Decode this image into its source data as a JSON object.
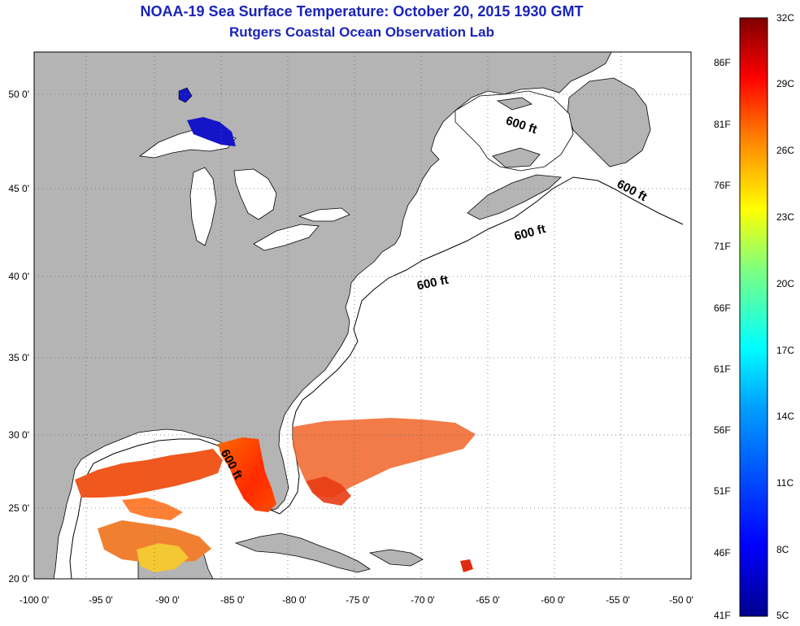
{
  "title": "NOAA-19 Sea Surface Temperature:  October 20, 2015 1930 GMT",
  "subtitle": "Rutgers Coastal Ocean Observation Lab",
  "lat_ticks": [
    "50 0'",
    "45 0'",
    "40 0'",
    "35 0'",
    "30 0'",
    "25 0'",
    "20 0'"
  ],
  "lon_ticks": [
    "-100 0'",
    "-95 0'",
    "-90 0'",
    "-85 0'",
    "-80 0'",
    "-75 0'",
    "-70 0'",
    "-65 0'",
    "-60 0'",
    "-55 0'",
    "-50 0'"
  ],
  "contour_labels": [
    "600 ft",
    "600 ft",
    "600 ft",
    "600 ft",
    "600 ft"
  ],
  "colorbar": {
    "celsius": [
      "32C",
      "29C",
      "26C",
      "23C",
      "20C",
      "17C",
      "14C",
      "11C",
      "8C",
      "5C"
    ],
    "fahrenheit": [
      "86F",
      "81F",
      "76F",
      "71F",
      "66F",
      "61F",
      "56F",
      "51F",
      "46F",
      "41F"
    ],
    "colors": [
      "#7f0000",
      "#ff0000",
      "#ff7f00",
      "#ffff00",
      "#7fff7f",
      "#00ffff",
      "#007fff",
      "#0000ff",
      "#00008f"
    ]
  },
  "colors": {
    "land": "#b4b4b4",
    "ocean": "#ffffff",
    "title_blue": "#1a24b8",
    "lake_blue": "#1414c8"
  }
}
